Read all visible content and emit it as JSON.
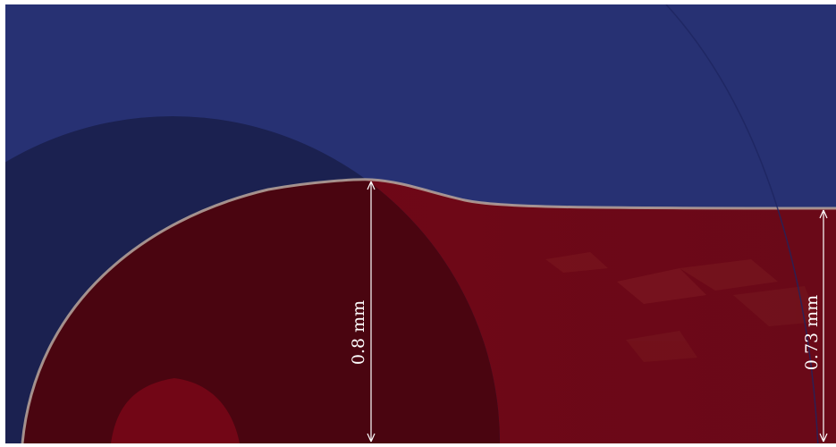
{
  "figure": {
    "colors": {
      "background": "#ffffff",
      "upper_phase": "#273173",
      "upper_phase_shaded": "#1b2150",
      "lower_phase": "#720616",
      "lower_phase_shaded": "#4a0510",
      "interface": "#b8a79d",
      "dimension_lines": "#ffffff"
    },
    "dimensions": {
      "left_label": "0.8 mm",
      "right_label": "0.73 mm"
    }
  }
}
